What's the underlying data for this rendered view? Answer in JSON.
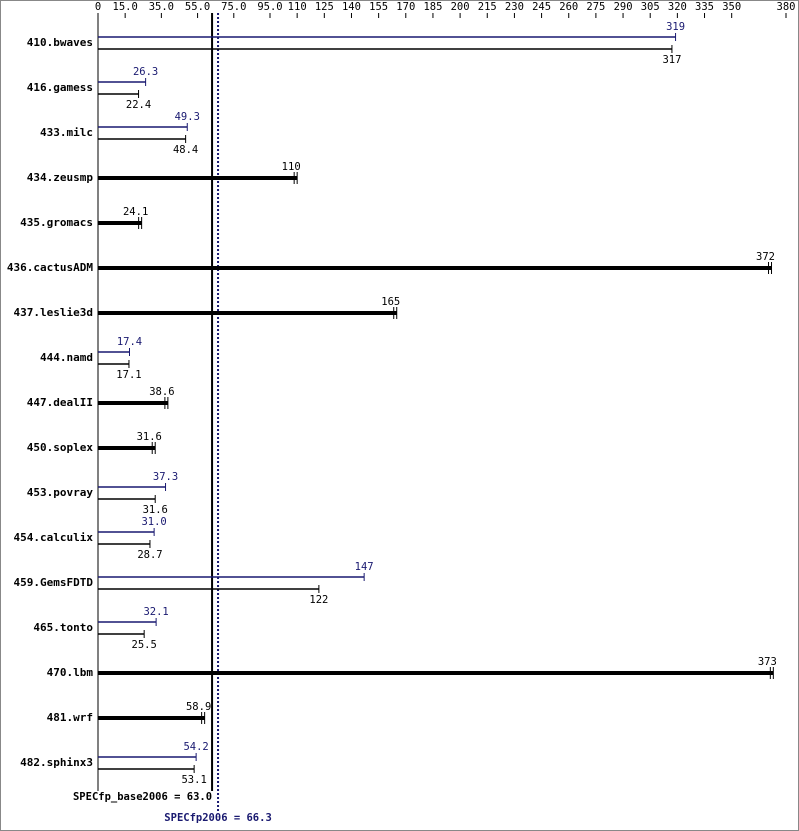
{
  "chart_data": {
    "type": "hbar",
    "categories": [
      "410.bwaves",
      "416.gamess",
      "433.milc",
      "434.zeusmp",
      "435.gromacs",
      "436.cactusADM",
      "437.leslie3d",
      "444.namd",
      "447.dealII",
      "450.soplex",
      "453.povray",
      "454.calculix",
      "459.GemsFDTD",
      "465.tonto",
      "470.lbm",
      "481.wrf",
      "482.sphinx3"
    ],
    "series": [
      {
        "color": "#000000",
        "values": [
          317,
          22.4,
          48.4,
          110,
          24.1,
          372,
          165,
          17.1,
          38.6,
          31.6,
          31.6,
          28.7,
          122,
          25.5,
          373,
          58.9,
          53.1
        ]
      },
      {
        "color": "#191970",
        "values": [
          319,
          26.3,
          49.3,
          null,
          null,
          null,
          null,
          17.4,
          null,
          null,
          37.3,
          31.0,
          147,
          32.1,
          null,
          null,
          54.2
        ],
        "value_labels": [
          "319",
          "26.3",
          "49.3",
          null,
          null,
          null,
          null,
          "17.4",
          null,
          null,
          "37.3",
          "31.0",
          "147",
          "32.1",
          null,
          null,
          "54.2"
        ]
      }
    ],
    "xlim": [
      0,
      380
    ],
    "xticks": [
      0,
      {
        "value": 15,
        "label": "15.0"
      },
      {
        "value": 35,
        "label": "35.0"
      },
      {
        "value": 55,
        "label": "55.0"
      },
      {
        "value": 75,
        "label": "75.0"
      },
      {
        "value": 95,
        "label": "95.0"
      },
      110,
      125,
      140,
      155,
      170,
      185,
      200,
      215,
      230,
      245,
      260,
      275,
      290,
      305,
      320,
      335,
      350,
      380
    ],
    "reference_lines": [
      {
        "label": "SPECfp_base2006 = 63.0",
        "value": 63,
        "color": "#000000"
      },
      {
        "label": "SPECfp2006 = 66.3",
        "value": 66.3,
        "color": "#191970"
      }
    ]
  }
}
